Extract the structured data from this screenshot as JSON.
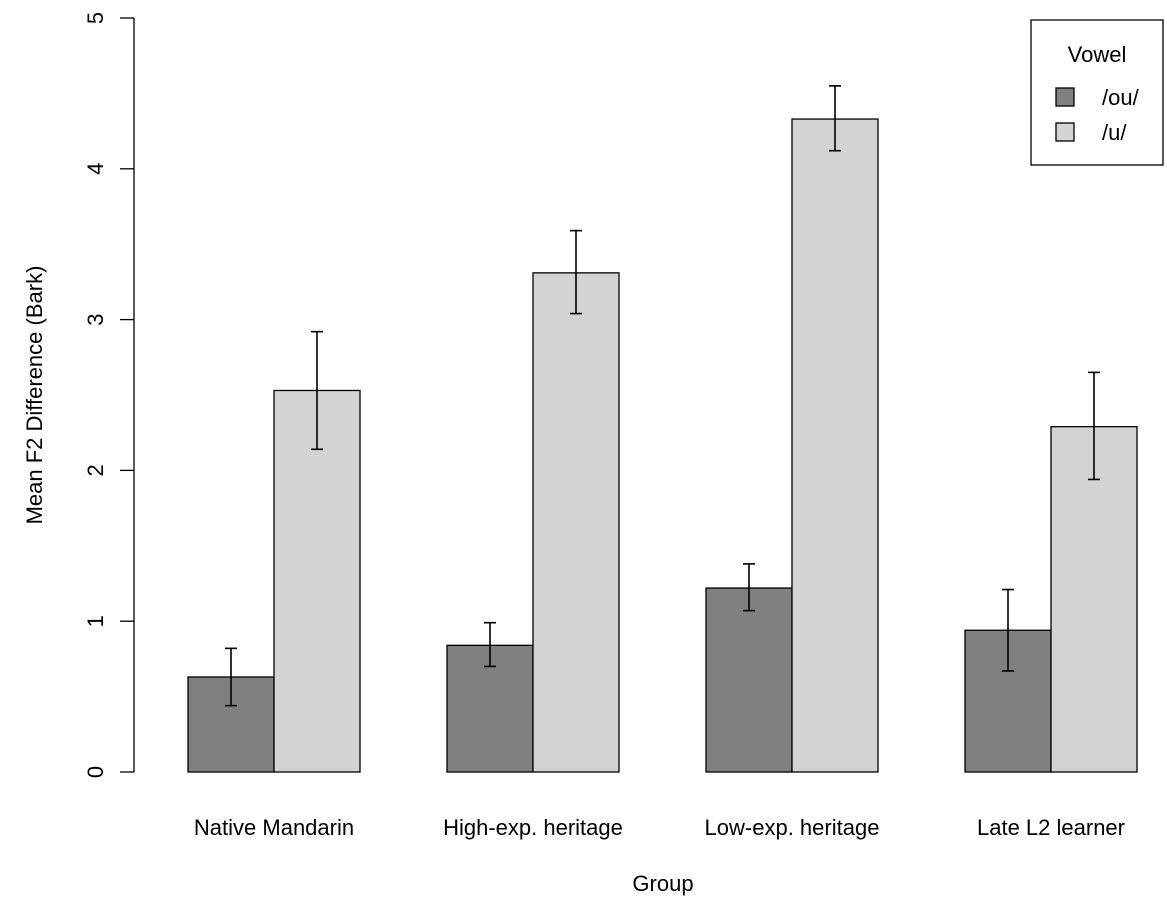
{
  "chart_data": {
    "type": "bar",
    "title": "",
    "xlabel": "Group",
    "ylabel": "Mean F2 Difference (Bark)",
    "ylim": [
      0,
      5
    ],
    "yticks": [
      0,
      1,
      2,
      3,
      4,
      5
    ],
    "grid": false,
    "categories": [
      "Native Mandarin",
      "High-exp. heritage",
      "Low-exp. heritage",
      "Late L2 learner"
    ],
    "series": [
      {
        "name": "/ou/",
        "color": "#808080",
        "values": [
          0.63,
          0.84,
          1.22,
          0.94
        ],
        "error_low": [
          0.44,
          0.7,
          1.07,
          0.67
        ],
        "error_high": [
          0.82,
          0.99,
          1.38,
          1.21
        ]
      },
      {
        "name": "/u/",
        "color": "#d3d3d3",
        "values": [
          2.53,
          3.31,
          4.33,
          2.29
        ],
        "error_low": [
          2.14,
          3.04,
          4.12,
          1.94
        ],
        "error_high": [
          2.92,
          3.59,
          4.55,
          2.65
        ]
      }
    ],
    "legend": {
      "title": "Vowel",
      "position": "top-right"
    }
  }
}
